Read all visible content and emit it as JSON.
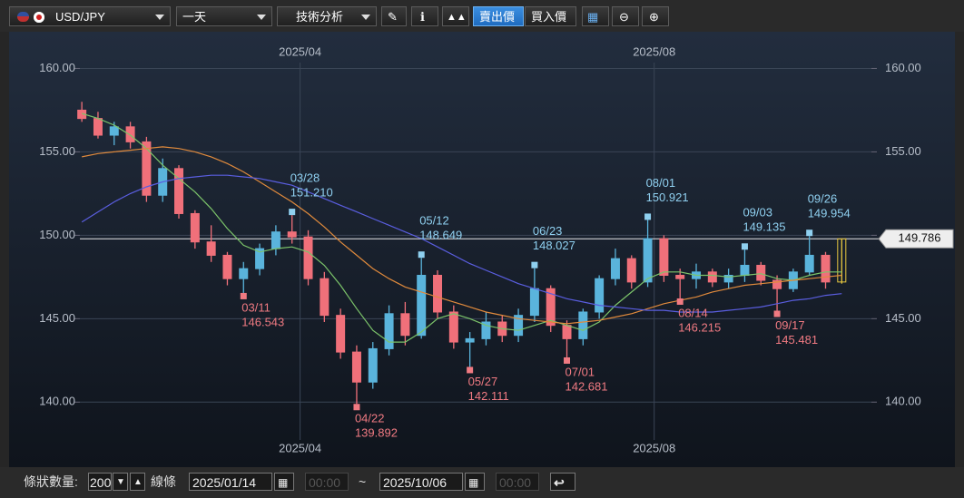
{
  "toolbar": {
    "symbol": "USD/JPY",
    "period": "一天",
    "analysis": "技術分析",
    "sell": "賣出價",
    "buy": "買入價"
  },
  "footer": {
    "count_label": "條狀數量:",
    "count": "200",
    "line_label": "線條",
    "from_date": "2025/01/14",
    "from_time": "00:00",
    "separator": "~",
    "to_date": "2025/10/06",
    "to_time": "00:00"
  },
  "chart_data": {
    "type": "candlestick",
    "up_color": "#5ab4dc",
    "down_color": "#f0707a",
    "current_color": "#e8c840",
    "xlim": [
      -4.5,
      54
    ],
    "ylim": [
      136.1,
      162.2
    ],
    "xticks": [
      {
        "value": 13.5,
        "label": "2025/04"
      },
      {
        "value": 35.4,
        "label": "2025/08"
      }
    ],
    "yticks": [
      {
        "value": 140,
        "label": "140.00"
      },
      {
        "value": 145,
        "label": "145.00"
      },
      {
        "value": 150,
        "label": "150.00"
      },
      {
        "value": 155,
        "label": "155.00"
      },
      {
        "value": 160,
        "label": "160.00"
      }
    ],
    "grid": true,
    "candles": [
      [
        157.5,
        158.0,
        156.8,
        157.0
      ],
      [
        157.0,
        157.4,
        155.8,
        156.0
      ],
      [
        156.0,
        156.8,
        155.4,
        156.5
      ],
      [
        156.5,
        156.8,
        155.2,
        155.6
      ],
      [
        155.6,
        155.9,
        152.0,
        152.4
      ],
      [
        152.4,
        154.6,
        152.0,
        154.0
      ],
      [
        154.0,
        154.2,
        151.0,
        151.3
      ],
      [
        151.3,
        151.5,
        149.2,
        149.6
      ],
      [
        149.6,
        150.6,
        148.4,
        148.8
      ],
      [
        148.8,
        149.0,
        147.0,
        147.4
      ],
      [
        147.4,
        148.4,
        146.543,
        148.0
      ],
      [
        148.0,
        149.5,
        147.6,
        149.2
      ],
      [
        149.2,
        150.6,
        148.8,
        150.2
      ],
      [
        150.2,
        151.21,
        149.5,
        149.9
      ],
      [
        149.9,
        150.3,
        147.0,
        147.4
      ],
      [
        147.4,
        147.8,
        144.8,
        145.2
      ],
      [
        145.2,
        145.6,
        142.6,
        143.0
      ],
      [
        143.0,
        143.4,
        139.892,
        141.2
      ],
      [
        141.2,
        143.6,
        140.8,
        143.2
      ],
      [
        143.2,
        145.8,
        142.8,
        145.3
      ],
      [
        145.3,
        146.0,
        143.4,
        144.0
      ],
      [
        144.0,
        148.649,
        143.8,
        147.6
      ],
      [
        147.6,
        147.9,
        145.0,
        145.4
      ],
      [
        145.4,
        145.8,
        143.2,
        143.6
      ],
      [
        143.6,
        144.2,
        142.111,
        143.8
      ],
      [
        143.8,
        145.4,
        143.4,
        144.8
      ],
      [
        144.8,
        145.2,
        143.6,
        144.0
      ],
      [
        144.0,
        145.6,
        143.6,
        145.2
      ],
      [
        145.2,
        148.027,
        144.8,
        146.8
      ],
      [
        146.8,
        147.0,
        144.2,
        144.6
      ],
      [
        144.6,
        144.9,
        142.681,
        143.8
      ],
      [
        143.8,
        145.6,
        143.4,
        145.4
      ],
      [
        145.4,
        147.6,
        145.0,
        147.4
      ],
      [
        147.4,
        149.2,
        147.0,
        148.6
      ],
      [
        148.6,
        148.8,
        146.8,
        147.2
      ],
      [
        147.2,
        150.921,
        146.9,
        149.8
      ],
      [
        149.8,
        150.0,
        147.2,
        147.6
      ],
      [
        147.6,
        148.0,
        146.215,
        147.4
      ],
      [
        147.4,
        148.3,
        146.8,
        147.8
      ],
      [
        147.8,
        148.0,
        146.9,
        147.2
      ],
      [
        147.2,
        148.0,
        146.8,
        147.6
      ],
      [
        147.6,
        149.135,
        147.2,
        148.2
      ],
      [
        148.2,
        148.4,
        147.0,
        147.3
      ],
      [
        147.3,
        147.6,
        145.481,
        146.8
      ],
      [
        146.8,
        148.0,
        146.6,
        147.8
      ],
      [
        147.8,
        149.954,
        147.6,
        148.8
      ],
      [
        148.8,
        149.0,
        146.8,
        147.2
      ],
      [
        147.2,
        149.8,
        147.1,
        149.786
      ]
    ],
    "series": [
      {
        "color": "#7cc46a",
        "values": [
          157.3,
          157.0,
          156.6,
          156.0,
          155.2,
          154.2,
          153.4,
          152.6,
          151.6,
          150.4,
          149.4,
          149.0,
          149.2,
          149.3,
          149.0,
          148.2,
          147.0,
          145.6,
          144.3,
          143.6,
          143.6,
          144.2,
          145.0,
          145.3,
          145.0,
          144.6,
          144.4,
          144.3,
          144.6,
          144.9,
          144.6,
          144.3,
          144.8,
          145.8,
          146.6,
          147.4,
          147.8,
          147.8,
          147.6,
          147.6,
          147.5,
          147.6,
          147.7,
          147.4,
          147.3,
          147.6,
          147.8,
          147.8
        ]
      },
      {
        "color": "#e08a3c",
        "values": [
          154.7,
          154.9,
          155.0,
          155.1,
          155.2,
          155.3,
          155.2,
          155.0,
          154.7,
          154.3,
          153.8,
          153.2,
          152.6,
          152.0,
          151.3,
          150.5,
          149.6,
          148.8,
          148.0,
          147.4,
          146.9,
          146.6,
          146.3,
          146.0,
          145.7,
          145.4,
          145.2,
          145.0,
          144.9,
          144.8,
          144.7,
          144.8,
          144.9,
          145.1,
          145.3,
          145.6,
          145.9,
          146.1,
          146.3,
          146.6,
          146.8,
          147.0,
          147.1,
          147.2,
          147.3,
          147.4,
          147.5,
          147.6
        ]
      },
      {
        "color": "#5a5ee0",
        "values": [
          150.8,
          151.4,
          152.0,
          152.5,
          152.9,
          153.2,
          153.4,
          153.5,
          153.6,
          153.6,
          153.5,
          153.4,
          153.2,
          153.0,
          152.6,
          152.2,
          151.8,
          151.4,
          151.0,
          150.6,
          150.2,
          149.8,
          149.3,
          148.8,
          148.3,
          147.9,
          147.5,
          147.1,
          146.8,
          146.5,
          146.2,
          146.0,
          145.8,
          145.7,
          145.6,
          145.5,
          145.5,
          145.4,
          145.4,
          145.4,
          145.5,
          145.6,
          145.7,
          145.9,
          146.1,
          146.2,
          146.4,
          146.5
        ]
      }
    ],
    "annotations": [
      {
        "x": 13,
        "date": "03/28",
        "value": 151.21,
        "label": "151.210",
        "kind": "high"
      },
      {
        "x": 21,
        "date": "05/12",
        "value": 148.649,
        "label": "148.649",
        "kind": "high"
      },
      {
        "x": 28,
        "date": "06/23",
        "value": 148.027,
        "label": "148.027",
        "kind": "high"
      },
      {
        "x": 35,
        "date": "08/01",
        "value": 150.921,
        "label": "150.921",
        "kind": "high"
      },
      {
        "x": 41,
        "date": "09/03",
        "value": 149.135,
        "label": "149.135",
        "kind": "high"
      },
      {
        "x": 45,
        "date": "09/26",
        "value": 149.954,
        "label": "149.954",
        "kind": "high"
      },
      {
        "x": 10,
        "date": "03/11",
        "value": 146.543,
        "label": "146.543",
        "kind": "low"
      },
      {
        "x": 17,
        "date": "04/22",
        "value": 139.892,
        "label": "139.892",
        "kind": "low"
      },
      {
        "x": 24,
        "date": "05/27",
        "value": 142.111,
        "label": "142.111",
        "kind": "low"
      },
      {
        "x": 30,
        "date": "07/01",
        "value": 142.681,
        "label": "142.681",
        "kind": "low"
      },
      {
        "x": 37,
        "date": "08/14",
        "value": 146.215,
        "label": "146.215",
        "kind": "low"
      },
      {
        "x": 43,
        "date": "09/17",
        "value": 145.481,
        "label": "145.481",
        "kind": "low"
      }
    ],
    "last_price": {
      "value": 149.786,
      "label": "149.786"
    }
  }
}
